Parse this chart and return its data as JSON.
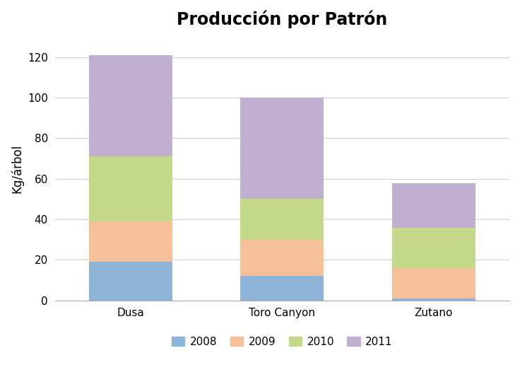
{
  "title": "Producción por Patrón",
  "ylabel": "Kg/árbol",
  "categories": [
    "Dusa",
    "Toro Canyon",
    "Zutano"
  ],
  "series": {
    "2008": [
      19,
      12,
      1
    ],
    "2009": [
      20,
      18,
      15
    ],
    "2010": [
      32,
      20,
      20
    ],
    "2011": [
      50,
      50,
      22
    ]
  },
  "colors": {
    "2008": "#8EB4D8",
    "2009": "#F5C09A",
    "2010": "#C5D98A",
    "2011": "#C0B0D0"
  },
  "ylim": [
    0,
    130
  ],
  "yticks": [
    0,
    20,
    40,
    60,
    80,
    100,
    120
  ],
  "bar_width": 0.55,
  "title_fontsize": 17,
  "axis_label_fontsize": 12,
  "tick_fontsize": 11,
  "legend_fontsize": 11,
  "background_color": "#ffffff",
  "grid_color": "#d0d0d0"
}
